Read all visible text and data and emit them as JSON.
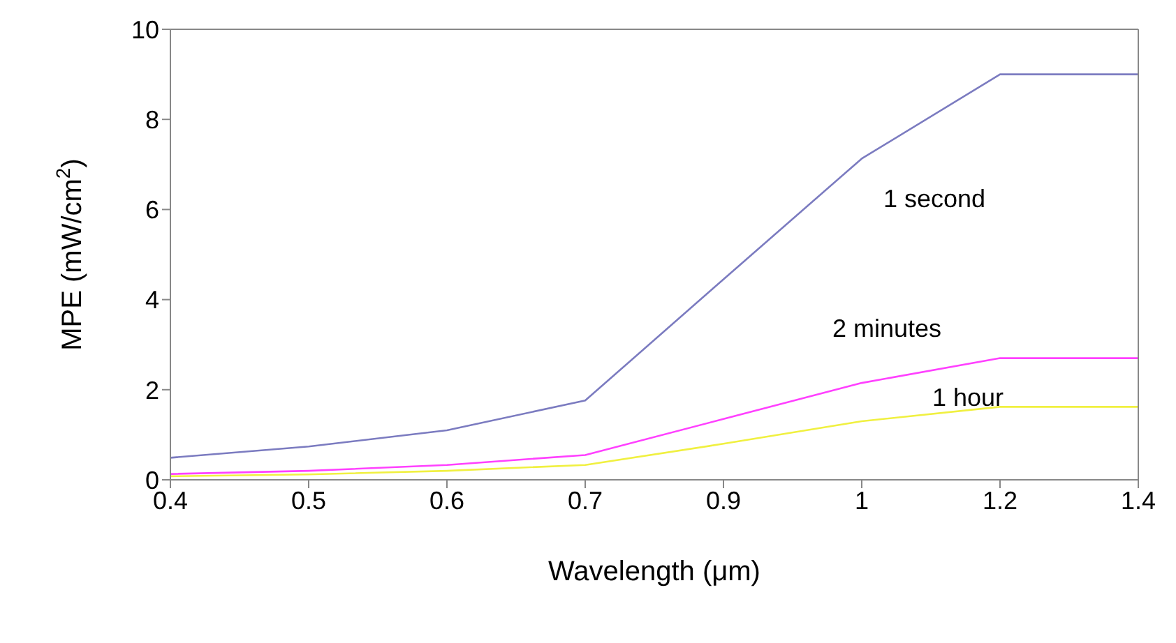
{
  "chart_data": {
    "type": "line",
    "xlabel": "Wavelength (μm)",
    "ylabel": "MPE (mW/cm$^{2}$)",
    "categories": [
      "0.4",
      "0.5",
      "0.6",
      "0.7",
      "0.9",
      "1",
      "1.2",
      "1.4"
    ],
    "ylim": [
      0,
      10
    ],
    "yticks": [
      0,
      2,
      4,
      6,
      8,
      10
    ],
    "marker": "none",
    "line_style": "solid",
    "series": [
      {
        "name": "1 second",
        "color": "#7b7bc0",
        "values": [
          0.49,
          0.74,
          1.1,
          1.76,
          4.45,
          7.13,
          9,
          9
        ]
      },
      {
        "name": "2 minutes",
        "color": "#ff40ff",
        "values": [
          0.13,
          0.2,
          0.33,
          0.55,
          1.35,
          2.15,
          2.7,
          2.7
        ]
      },
      {
        "name": "1 hour",
        "color": "#f0f040",
        "values": [
          0.08,
          0.12,
          0.2,
          0.33,
          0.8,
          1.3,
          1.62,
          1.62
        ]
      }
    ]
  }
}
